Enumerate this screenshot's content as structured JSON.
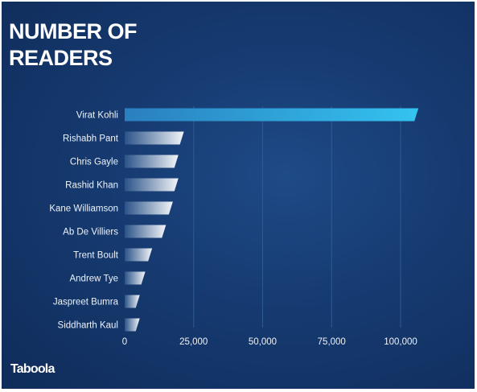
{
  "title": "NUMBER OF\nREADERS",
  "brand": "Taboola",
  "colors": {
    "background": "#163a70",
    "highlight_bar": "#2ab7e8",
    "bar": "#e8ecf2"
  },
  "chart_data": {
    "type": "bar",
    "orientation": "horizontal",
    "categories": [
      "Virat Kohli",
      "Rishabh Pant",
      "Chris Gayle",
      "Rashid Khan",
      "Kane Williamson",
      "Ab De Villiers",
      "Trent Boult",
      "Andrew Tye",
      "Jaspreet Bumra",
      "Siddharth Kaul"
    ],
    "values": [
      105000,
      20000,
      18000,
      18000,
      16000,
      13500,
      8500,
      6000,
      4000,
      4000
    ],
    "highlight": [
      "Virat Kohli"
    ],
    "xlim": [
      0,
      110000
    ],
    "xticks": [
      0,
      25000,
      50000,
      75000,
      100000
    ],
    "xtick_labels": [
      "0",
      "25,000",
      "50,000",
      "75,000",
      "100,000"
    ],
    "grid": true,
    "title": "NUMBER OF READERS"
  }
}
